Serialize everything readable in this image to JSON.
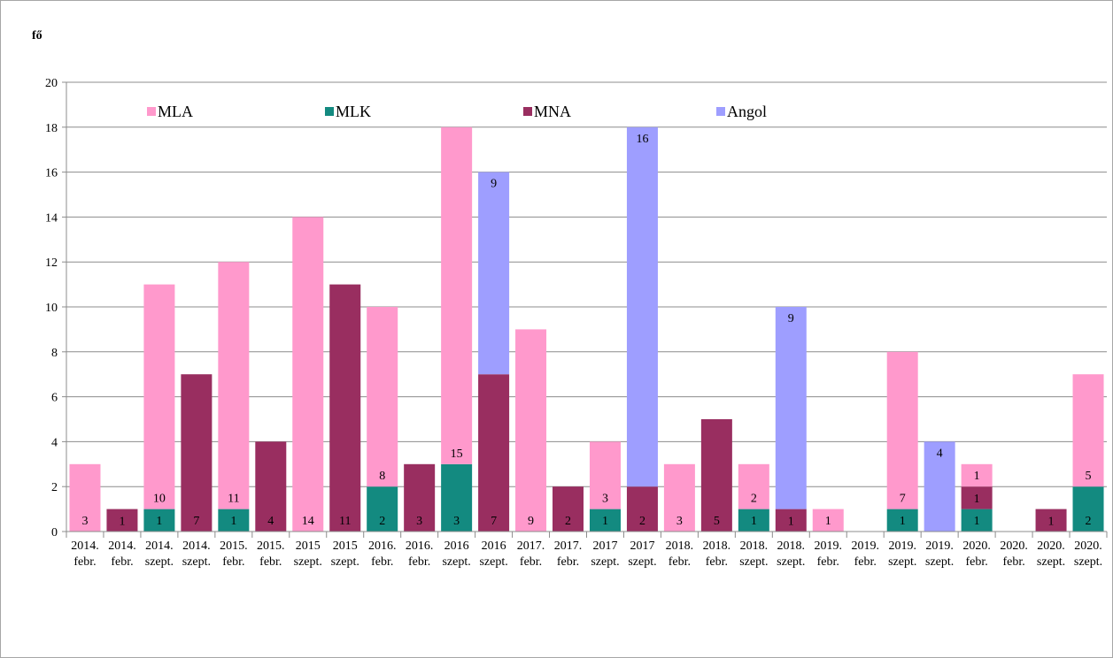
{
  "chart_data": {
    "type": "bar",
    "stacked": true,
    "ylabel": "fő",
    "ylim": [
      0,
      20
    ],
    "yticks": [
      0,
      2,
      4,
      6,
      8,
      10,
      12,
      14,
      16,
      18,
      20
    ],
    "grid": true,
    "legend_position": "top",
    "categories": [
      [
        "2014.",
        "febr."
      ],
      [
        "2014.",
        "febr."
      ],
      [
        "2014.",
        "szept."
      ],
      [
        "2014.",
        "szept."
      ],
      [
        "2015.",
        "febr."
      ],
      [
        "2015.",
        "febr."
      ],
      [
        "2015",
        "szept."
      ],
      [
        "2015",
        "szept."
      ],
      [
        "2016.",
        "febr."
      ],
      [
        "2016.",
        "febr."
      ],
      [
        "2016",
        "szept."
      ],
      [
        "2016",
        "szept."
      ],
      [
        "2017.",
        "febr."
      ],
      [
        "2017.",
        "febr."
      ],
      [
        "2017",
        "szept."
      ],
      [
        "2017",
        "szept."
      ],
      [
        "2018.",
        "febr."
      ],
      [
        "2018.",
        "febr."
      ],
      [
        "2018.",
        "szept."
      ],
      [
        "2018.",
        "szept."
      ],
      [
        "2019.",
        "febr."
      ],
      [
        "2019.",
        "febr."
      ],
      [
        "2019.",
        "szept."
      ],
      [
        "2019.",
        "szept."
      ],
      [
        "2020.",
        "febr."
      ],
      [
        "2020.",
        "febr."
      ],
      [
        "2020.",
        "szept."
      ],
      [
        "2020.",
        "szept."
      ]
    ],
    "series": [
      {
        "name": "MLK",
        "color": "#138a80",
        "values": [
          0,
          0,
          1,
          0,
          1,
          0,
          0,
          0,
          2,
          0,
          3,
          0,
          0,
          0,
          1,
          0,
          0,
          0,
          1,
          0,
          0,
          0,
          1,
          0,
          1,
          0,
          0,
          2
        ]
      },
      {
        "name": "MNA",
        "color": "#992e60",
        "values": [
          0,
          1,
          0,
          7,
          0,
          4,
          0,
          11,
          0,
          3,
          0,
          7,
          0,
          2,
          0,
          2,
          0,
          5,
          0,
          1,
          0,
          0,
          0,
          0,
          1,
          0,
          1,
          0
        ]
      },
      {
        "name": "Angol",
        "color": "#9e9eff",
        "values": [
          0,
          0,
          0,
          0,
          0,
          0,
          0,
          0,
          0,
          0,
          0,
          9,
          0,
          0,
          0,
          16,
          0,
          0,
          0,
          9,
          0,
          0,
          0,
          4,
          0,
          0,
          0,
          0
        ]
      },
      {
        "name": "MLA",
        "color": "#ff99cc",
        "values": [
          3,
          0,
          10,
          0,
          11,
          0,
          14,
          0,
          8,
          0,
          15,
          0,
          9,
          0,
          3,
          0,
          3,
          0,
          2,
          0,
          1,
          0,
          7,
          0,
          1,
          0,
          0,
          5
        ]
      }
    ],
    "legend_order": [
      "MLA",
      "MLK",
      "MNA",
      "Angol"
    ]
  }
}
